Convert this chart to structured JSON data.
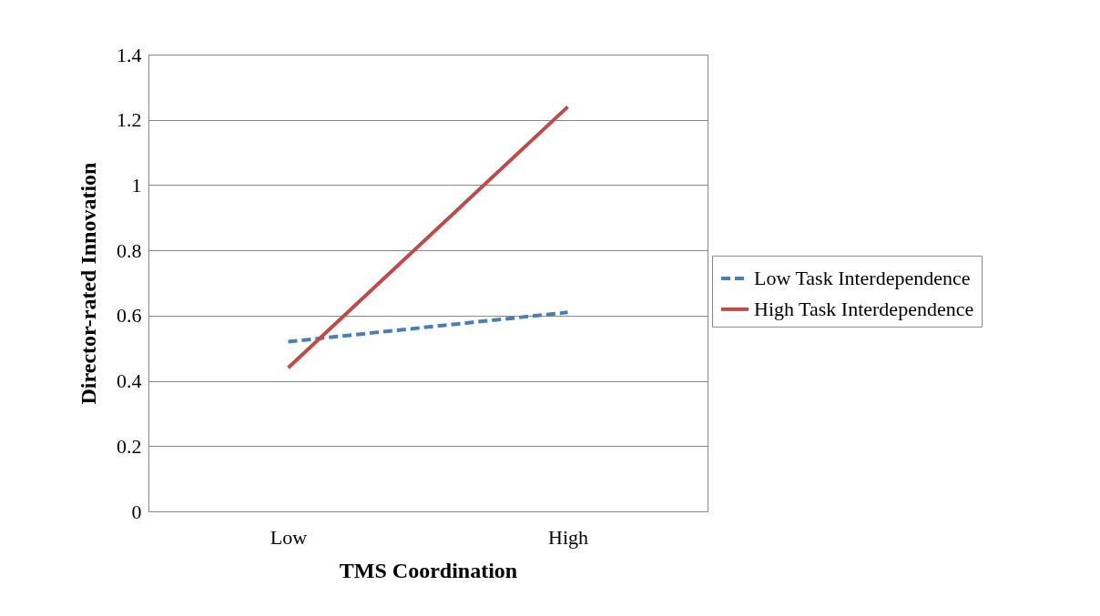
{
  "chart_data": {
    "type": "line",
    "xlabel": "TMS Coordination",
    "ylabel": "Director-rated Innovation",
    "categories": [
      "Low",
      "High"
    ],
    "series": [
      {
        "name": "Low Task Interdependence",
        "color": "#4a7ebb",
        "line_style": "dashed",
        "values": [
          0.52,
          0.61
        ]
      },
      {
        "name": "High Task Interdependence",
        "color": "#be4b48",
        "line_style": "solid",
        "values": [
          0.44,
          1.24
        ]
      }
    ],
    "ylim": [
      0,
      1.4
    ],
    "yticks": [
      0,
      0.2,
      0.4,
      0.6,
      0.8,
      1,
      1.2,
      1.4
    ],
    "grid": "y",
    "legend": "right",
    "marker": "none"
  }
}
